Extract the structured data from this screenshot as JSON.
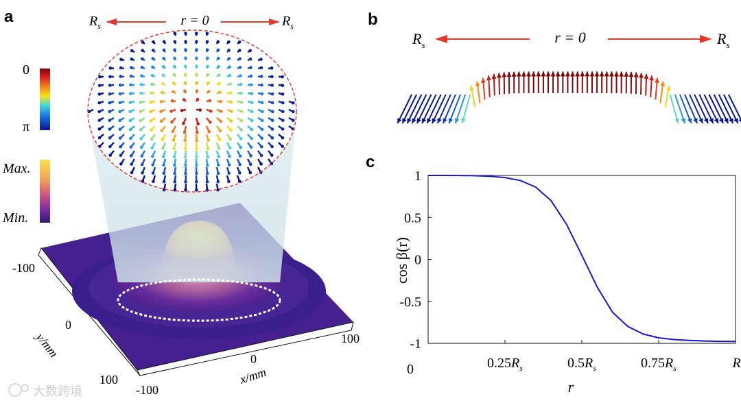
{
  "panels": {
    "a": {
      "label": "a",
      "top_scale": {
        "left": "R",
        "left_sub": "s",
        "center": "r = 0",
        "right": "R",
        "right_sub": "s"
      },
      "phase_bar": {
        "top": "0",
        "bottom": "π"
      },
      "intensity_bar": {
        "top": "Max.",
        "bottom": "Min."
      },
      "y_axis": {
        "label": "y/mm",
        "ticks": [
          "-100",
          "0",
          "100"
        ]
      },
      "x_axis": {
        "label": "x/mm",
        "ticks": [
          "-100",
          "0",
          "100"
        ]
      }
    },
    "b": {
      "label": "b",
      "top_scale": {
        "left": "R",
        "left_sub": "s",
        "center": "r = 0",
        "right": "R",
        "right_sub": "s"
      }
    },
    "c": {
      "label": "c"
    }
  },
  "chart_data": {
    "type": "line",
    "title": "",
    "xlabel": "r",
    "ylabel": "cos β(r)",
    "xlim": [
      0,
      1
    ],
    "ylim": [
      -1,
      1
    ],
    "x_ticks": [
      {
        "value": 0,
        "text": "0",
        "sub": ""
      },
      {
        "value": 0.25,
        "text": "0.25R",
        "sub": "s"
      },
      {
        "value": 0.5,
        "text": "0.5R",
        "sub": "s"
      },
      {
        "value": 0.75,
        "text": "0.75R",
        "sub": "s"
      },
      {
        "value": 1,
        "text": "R",
        "sub": "s"
      }
    ],
    "y_ticks": [
      {
        "value": 1,
        "text": "1"
      },
      {
        "value": 0.5,
        "text": "0.5"
      },
      {
        "value": 0,
        "text": "0"
      },
      {
        "value": -0.5,
        "text": "-0.5"
      },
      {
        "value": -1,
        "text": "-1"
      }
    ],
    "series": [
      {
        "name": "cos β(r)",
        "color": "#1515d6",
        "x": [
          0,
          0.05,
          0.1,
          0.15,
          0.2,
          0.25,
          0.3,
          0.35,
          0.4,
          0.45,
          0.5,
          0.55,
          0.6,
          0.65,
          0.7,
          0.75,
          0.8,
          0.85,
          0.9,
          0.95,
          1.0
        ],
        "y": [
          1.0,
          1.0,
          0.999,
          0.997,
          0.99,
          0.975,
          0.94,
          0.86,
          0.7,
          0.42,
          0.05,
          -0.33,
          -0.63,
          -0.8,
          -0.89,
          -0.935,
          -0.955,
          -0.965,
          -0.972,
          -0.976,
          -0.978
        ]
      }
    ]
  },
  "watermark": "大数跨境",
  "colors": {
    "arrow_red": "#e23b2e",
    "curve": "#1515d6",
    "dashed": "#e23b3b"
  }
}
